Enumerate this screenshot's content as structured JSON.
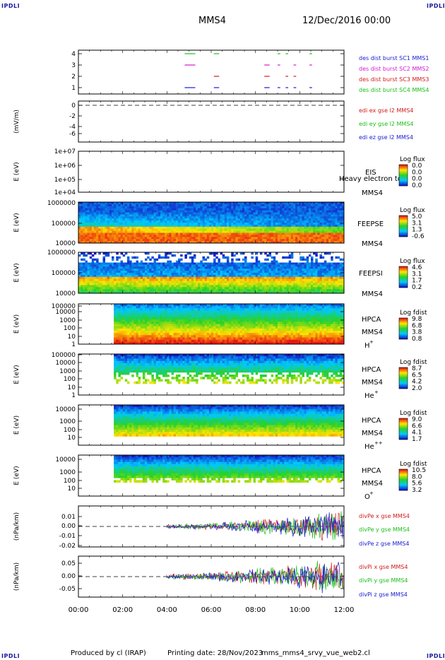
{
  "corners": {
    "tl": "IPDLI",
    "tr": "IPDLI",
    "bl": "IPDLI",
    "br": "IPDLI"
  },
  "header": {
    "spacecraft": "MMS4",
    "date": "12/Dec/2016 00:00"
  },
  "footer": {
    "produced": "Produced by cl (IRAP)",
    "printing": "Printing date: 28/Nov/2023",
    "file": "mms_mms4_srvy_vue_web2.cl"
  },
  "colors": {
    "blue": "#1a1ad0",
    "magenta": "#d21ad2",
    "red": "#d21a1a",
    "green": "#18c018"
  },
  "time_axis": {
    "ticks": [
      "00:00",
      "02:00",
      "04:00",
      "06:00",
      "08:00",
      "10:00",
      "12:00"
    ]
  },
  "chart_data": [
    {
      "type": "scatter",
      "id": "p1",
      "yticks": [
        "4",
        "3",
        "2",
        "1"
      ],
      "legend": [
        {
          "text": "des dist burst SC1 MMS1",
          "color": "blue"
        },
        {
          "text": "des dist burst SC2 MMS2",
          "color": "magenta"
        },
        {
          "text": "des dist burst SC3 MMS3",
          "color": "red"
        },
        {
          "text": "des dist burst SC4 MMS4",
          "color": "green"
        }
      ]
    },
    {
      "type": "line",
      "id": "p2",
      "ylabel": "(mV/m)",
      "yticks": [
        "0",
        "-2",
        "-4",
        "-6"
      ],
      "legend": [
        {
          "text": "edi ex gse l2 MMS4",
          "color": "red"
        },
        {
          "text": "edi ey gse l2 MMS4",
          "color": "green"
        },
        {
          "text": "edi ez gse l2 MMS4",
          "color": "blue"
        }
      ]
    },
    {
      "type": "heatmap",
      "id": "p3",
      "ylabel": "E (eV)",
      "yticks": [
        "1e+07",
        "1e+06",
        "1e+05",
        "1e+04"
      ],
      "labels": [
        "EIS",
        "MMS4"
      ],
      "overlay": "Heavy electron to",
      "cbar_title": "Log flux",
      "cbar_ticks": [
        "0.0",
        "0.0",
        "0.0",
        "0.0"
      ]
    },
    {
      "type": "heatmap",
      "id": "p4",
      "ylabel": "E (eV)",
      "yticks": [
        "1000000",
        "100000",
        "10000"
      ],
      "labels": [
        "FEEPSE",
        "MMS4"
      ],
      "cbar_title": "Log flux",
      "cbar_ticks": [
        "5.0",
        "3.1",
        "1.3",
        "-0.6"
      ]
    },
    {
      "type": "heatmap",
      "id": "p5",
      "ylabel": "E (eV)",
      "yticks": [
        "1000000",
        "100000",
        "10000"
      ],
      "labels": [
        "FEEPSI",
        "MMS4"
      ],
      "cbar_title": "Log flux",
      "cbar_ticks": [
        "4.6",
        "3.1",
        "1.7",
        "0.2"
      ]
    },
    {
      "type": "heatmap",
      "id": "p6",
      "ylabel": "E (eV)",
      "yticks": [
        "100000",
        "10000",
        "1000",
        "100",
        "10",
        "1"
      ],
      "labels": [
        "HPCA",
        "MMS4"
      ],
      "species": "H",
      "sup": "+",
      "cbar_title": "Log fdist",
      "cbar_ticks": [
        "9.8",
        "6.8",
        "3.8",
        "0.8"
      ]
    },
    {
      "type": "heatmap",
      "id": "p7",
      "ylabel": "E (eV)",
      "yticks": [
        "100000",
        "10000",
        "1000",
        "100",
        "10",
        "1"
      ],
      "labels": [
        "HPCA",
        "MMS4"
      ],
      "species": "He",
      "sup": "+",
      "cbar_title": "Log fdist",
      "cbar_ticks": [
        "8.7",
        "6.5",
        "4.2",
        "2.0"
      ]
    },
    {
      "type": "heatmap",
      "id": "p8",
      "ylabel": "E (eV)",
      "yticks": [
        "10000",
        "1000",
        "100",
        "10"
      ],
      "labels": [
        "HPCA",
        "MMS4"
      ],
      "species": "He",
      "sup": "++",
      "cbar_title": "Log fdist",
      "cbar_ticks": [
        "9.0",
        "6.6",
        "4.1",
        "1.7"
      ]
    },
    {
      "type": "heatmap",
      "id": "p9",
      "ylabel": "E (eV)",
      "yticks": [
        "10000",
        "1000",
        "100",
        "10"
      ],
      "labels": [
        "HPCA",
        "MMS4"
      ],
      "species": "O",
      "sup": "+",
      "cbar_title": "Log fdist",
      "cbar_ticks": [
        "10.5",
        "8.0",
        "5.6",
        "3.2"
      ]
    },
    {
      "type": "line",
      "id": "p10",
      "ylabel": "(nPa/km)",
      "yticks": [
        "0.01",
        "0.00",
        "-0.01",
        "-0.02"
      ],
      "legend": [
        {
          "text": "divPe x gse MMS4",
          "color": "red"
        },
        {
          "text": "divPe y gse MMS4",
          "color": "green"
        },
        {
          "text": "divPe z gse MMS4",
          "color": "blue"
        }
      ]
    },
    {
      "type": "line",
      "id": "p11",
      "ylabel": "(nPa/km)",
      "yticks": [
        "0.05",
        "0.00",
        "-0.05"
      ],
      "legend": [
        {
          "text": "divPi x gse MMS4",
          "color": "red"
        },
        {
          "text": "divPi y gse MMS4",
          "color": "green"
        },
        {
          "text": "divPi z gse MMS4",
          "color": "blue"
        }
      ]
    }
  ]
}
